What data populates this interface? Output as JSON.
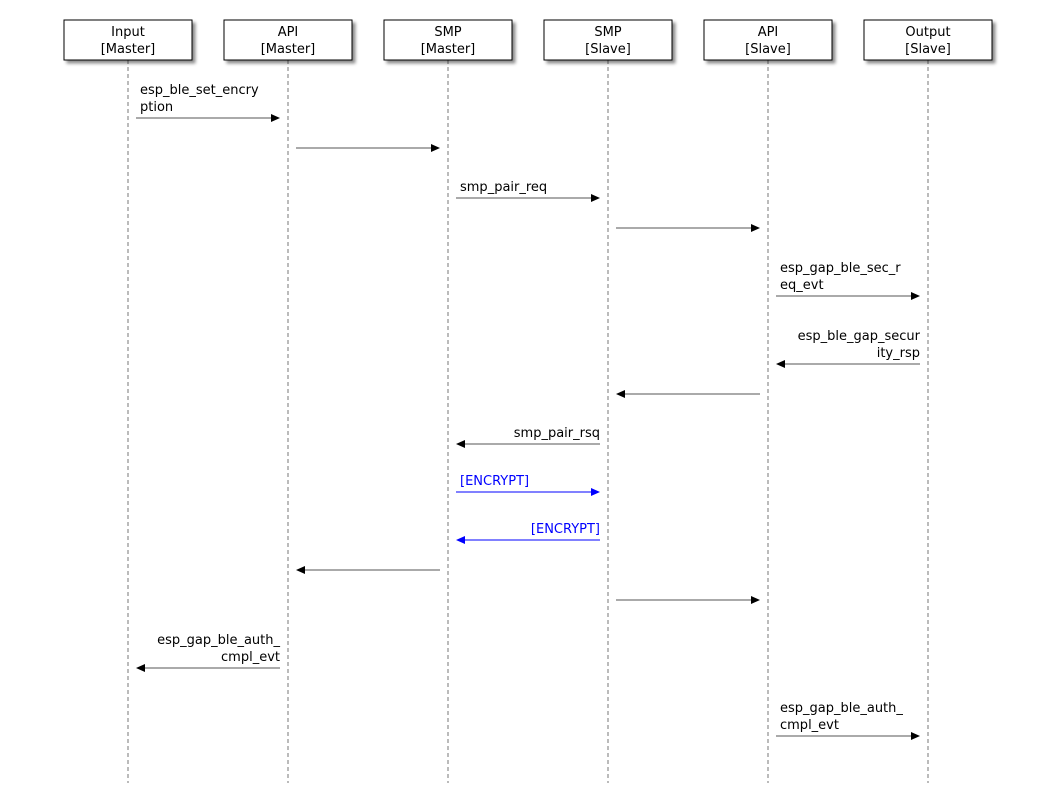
{
  "actors": [
    {
      "lines": [
        "Input",
        "[Master]"
      ]
    },
    {
      "lines": [
        "API",
        "[Master]"
      ]
    },
    {
      "lines": [
        "SMP",
        "[Master]"
      ]
    },
    {
      "lines": [
        "SMP",
        "[Slave]"
      ]
    },
    {
      "lines": [
        "API",
        "[Slave]"
      ]
    },
    {
      "lines": [
        "Output",
        "[Slave]"
      ]
    }
  ],
  "colors": {
    "default": "#000000",
    "encrypt": "#0000ff"
  },
  "messages": [
    {
      "from": 0,
      "to": 1,
      "label": [
        "esp_ble_set_encry",
        "ption"
      ]
    },
    {
      "from": 1,
      "to": 2,
      "label": []
    },
    {
      "from": 2,
      "to": 3,
      "label": [
        "smp_pair_req"
      ]
    },
    {
      "from": 3,
      "to": 4,
      "label": []
    },
    {
      "from": 4,
      "to": 5,
      "label": [
        "esp_gap_ble_sec_r",
        "eq_evt"
      ]
    },
    {
      "from": 5,
      "to": 4,
      "label": [
        "esp_ble_gap_secur",
        "ity_rsp"
      ]
    },
    {
      "from": 4,
      "to": 3,
      "label": []
    },
    {
      "from": 3,
      "to": 2,
      "label": [
        "smp_pair_rsq"
      ]
    },
    {
      "from": 2,
      "to": 3,
      "label": [
        "[ENCRYPT]"
      ],
      "color": "encrypt"
    },
    {
      "from": 3,
      "to": 2,
      "label": [
        "[ENCRYPT]"
      ],
      "color": "encrypt"
    },
    {
      "from": 2,
      "to": 1,
      "label": []
    },
    {
      "from": 3,
      "to": 4,
      "label": []
    },
    {
      "from": 1,
      "to": 0,
      "label": [
        "esp_gap_ble_auth_",
        "cmpl_evt"
      ]
    },
    {
      "from": 4,
      "to": 5,
      "label": [
        "esp_gap_ble_auth_",
        "cmpl_evt"
      ]
    }
  ]
}
